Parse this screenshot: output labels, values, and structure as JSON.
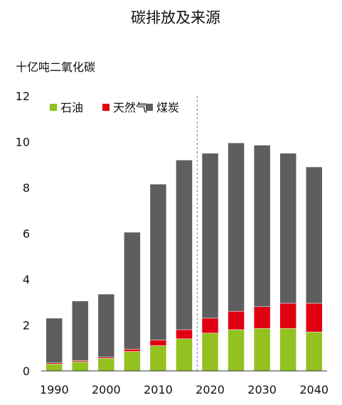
{
  "chart_data": {
    "type": "bar",
    "stacked": true,
    "title": "碳排放及来源",
    "ylabel": "十亿吨二氧化碳",
    "xlabel": "",
    "ylim": [
      0,
      12
    ],
    "y_ticks": [
      "0",
      "2",
      "4",
      "6",
      "8",
      "10",
      "12"
    ],
    "x_tick_labels": [
      "1990",
      "2000",
      "2010",
      "2020",
      "2030",
      "2040"
    ],
    "categories": [
      "1990",
      "1995",
      "2000",
      "2005",
      "2010",
      "2015",
      "2020",
      "2025",
      "2030",
      "2035",
      "2040"
    ],
    "series": [
      {
        "name": "石油",
        "color": "#92C120",
        "values": [
          0.3,
          0.4,
          0.55,
          0.85,
          1.1,
          1.4,
          1.65,
          1.8,
          1.85,
          1.85,
          1.7
        ]
      },
      {
        "name": "天然气",
        "color": "#E00012",
        "values": [
          0.05,
          0.05,
          0.05,
          0.1,
          0.25,
          0.4,
          0.65,
          0.8,
          0.95,
          1.1,
          1.25
        ]
      },
      {
        "name": "煤炭",
        "color": "#5E5E5E",
        "values": [
          1.95,
          2.6,
          2.75,
          5.1,
          6.8,
          7.4,
          7.2,
          7.35,
          7.05,
          6.55,
          5.95
        ]
      }
    ],
    "divider_after_category": "2015",
    "grid": false,
    "legend_position": "top-left"
  }
}
